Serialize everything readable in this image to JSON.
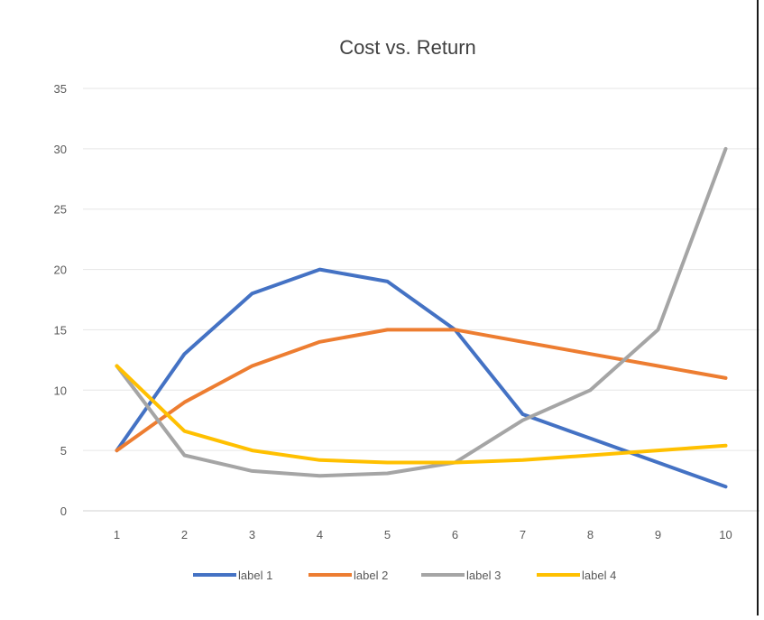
{
  "chart_data": {
    "type": "line",
    "title": "Cost vs. Return",
    "xlabel": "",
    "ylabel": "",
    "x": [
      1,
      2,
      3,
      4,
      5,
      6,
      7,
      8,
      9,
      10
    ],
    "ylim": [
      0,
      35
    ],
    "yticks": [
      0,
      5,
      10,
      15,
      20,
      25,
      30,
      35
    ],
    "grid": true,
    "legend_position": "bottom",
    "series": [
      {
        "name": "label 1",
        "color": "#4472C4",
        "values": [
          5,
          13,
          18,
          20,
          19,
          15,
          8,
          6,
          4,
          2
        ]
      },
      {
        "name": "label 2",
        "color": "#ED7D31",
        "values": [
          5,
          9,
          12,
          14,
          15,
          15,
          14,
          13,
          12,
          11
        ]
      },
      {
        "name": "label 3",
        "color": "#A5A5A5",
        "values": [
          12,
          4.6,
          3.3,
          2.9,
          3.1,
          4,
          7.5,
          10,
          15,
          30
        ]
      },
      {
        "name": "label 4",
        "color": "#FFC000",
        "values": [
          12,
          6.6,
          5,
          4.2,
          4,
          4,
          4.2,
          4.6,
          5,
          5.4
        ]
      }
    ]
  }
}
